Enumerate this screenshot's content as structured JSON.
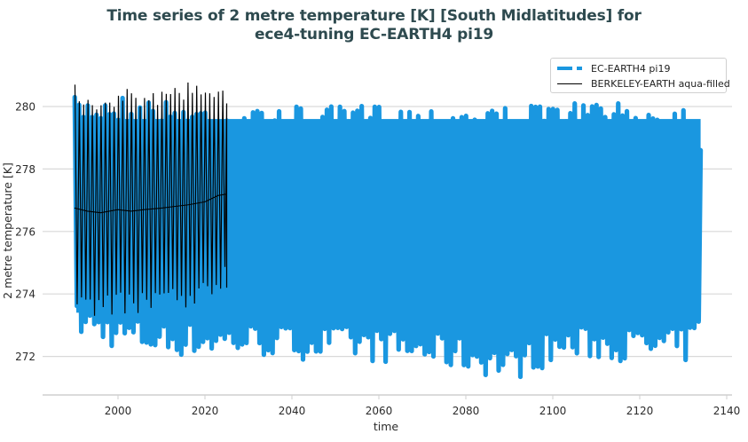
{
  "chart": {
    "title_line1": "Time series of 2 metre temperature [K] [South Midlatitudes] for",
    "title_line2": "ece4-tuning EC-EARTH4 pi19",
    "xlabel": "time",
    "ylabel": "2 metre temperature [K]",
    "xticks": [
      "2000",
      "2020",
      "2040",
      "2060",
      "2080",
      "2100",
      "2120",
      "2140"
    ],
    "yticks": [
      "272",
      "274",
      "276",
      "278",
      "280"
    ],
    "legend": [
      {
        "label": "EC-EARTH4 pi19",
        "style": "dashed",
        "color": "#1a97e0"
      },
      {
        "label": "BERKELEY-EARTH aqua-filled",
        "style": "solid",
        "color": "#000000"
      }
    ],
    "colors": {
      "ec_earth": "#1a97e0",
      "berkeley": "#000000",
      "title": "#2e4a4f",
      "grid": "#d9d9d9"
    }
  },
  "chart_data": {
    "type": "line",
    "title": "Time series of 2 metre temperature [K] [South Midlatitudes] for ece4-tuning EC-EARTH4 pi19",
    "xlabel": "time",
    "ylabel": "2 metre temperature [K]",
    "xlim": [
      1982,
      2142
    ],
    "ylim": [
      270.8,
      281.4
    ],
    "xticks": [
      2000,
      2020,
      2040,
      2060,
      2080,
      2100,
      2120,
      2140
    ],
    "yticks": [
      272,
      274,
      276,
      278,
      280
    ],
    "grid": "horizontal",
    "legend_position": "upper right",
    "series": [
      {
        "name": "EC-EARTH4 pi19",
        "x_range": [
          1990,
          2134
        ],
        "frequency": "monthly (seasonal cycle)",
        "annual_max_envelope": {
          "x": [
            1990,
            2000,
            2010,
            2020,
            2030,
            2040,
            2050,
            2060,
            2070,
            2080,
            2090,
            2100,
            2110,
            2120,
            2130,
            2134
          ],
          "y": [
            280.3,
            280.4,
            280.2,
            280.1,
            279.9,
            280.0,
            280.0,
            280.1,
            280.0,
            280.1,
            280.0,
            280.1,
            280.2,
            280.0,
            280.2,
            278.6
          ]
        },
        "annual_min_envelope": {
          "x": [
            1990,
            2000,
            2010,
            2020,
            2030,
            2040,
            2050,
            2060,
            2070,
            2080,
            2090,
            2100,
            2110,
            2120,
            2130,
            2134
          ],
          "y": [
            272.6,
            272.2,
            272.0,
            272.0,
            272.0,
            271.9,
            271.9,
            271.8,
            271.7,
            271.5,
            271.2,
            271.8,
            271.9,
            271.8,
            271.8,
            272.4
          ]
        }
      },
      {
        "name": "BERKELEY-EARTH aqua-filled",
        "x_range": [
          1990,
          2025
        ],
        "frequency": "monthly (seasonal cycle) with running mean",
        "annual_max_envelope": {
          "x": [
            1990,
            1995,
            2000,
            2005,
            2010,
            2015,
            2020,
            2024
          ],
          "y": [
            280.7,
            280.5,
            280.6,
            280.5,
            280.6,
            280.8,
            280.9,
            280.7
          ]
        },
        "annual_min_envelope": {
          "x": [
            1990,
            1995,
            2000,
            2005,
            2010,
            2015,
            2020,
            2024
          ],
          "y": [
            273.1,
            273.2,
            273.3,
            273.3,
            273.4,
            273.4,
            273.8,
            274.1
          ]
        },
        "running_mean": {
          "x": [
            1990,
            1993,
            1996,
            2000,
            2003,
            2006,
            2010,
            2013,
            2016,
            2020,
            2023,
            2025
          ],
          "y": [
            276.75,
            276.65,
            276.6,
            276.7,
            276.65,
            276.7,
            276.75,
            276.8,
            276.85,
            276.95,
            277.15,
            277.2
          ]
        }
      }
    ]
  }
}
